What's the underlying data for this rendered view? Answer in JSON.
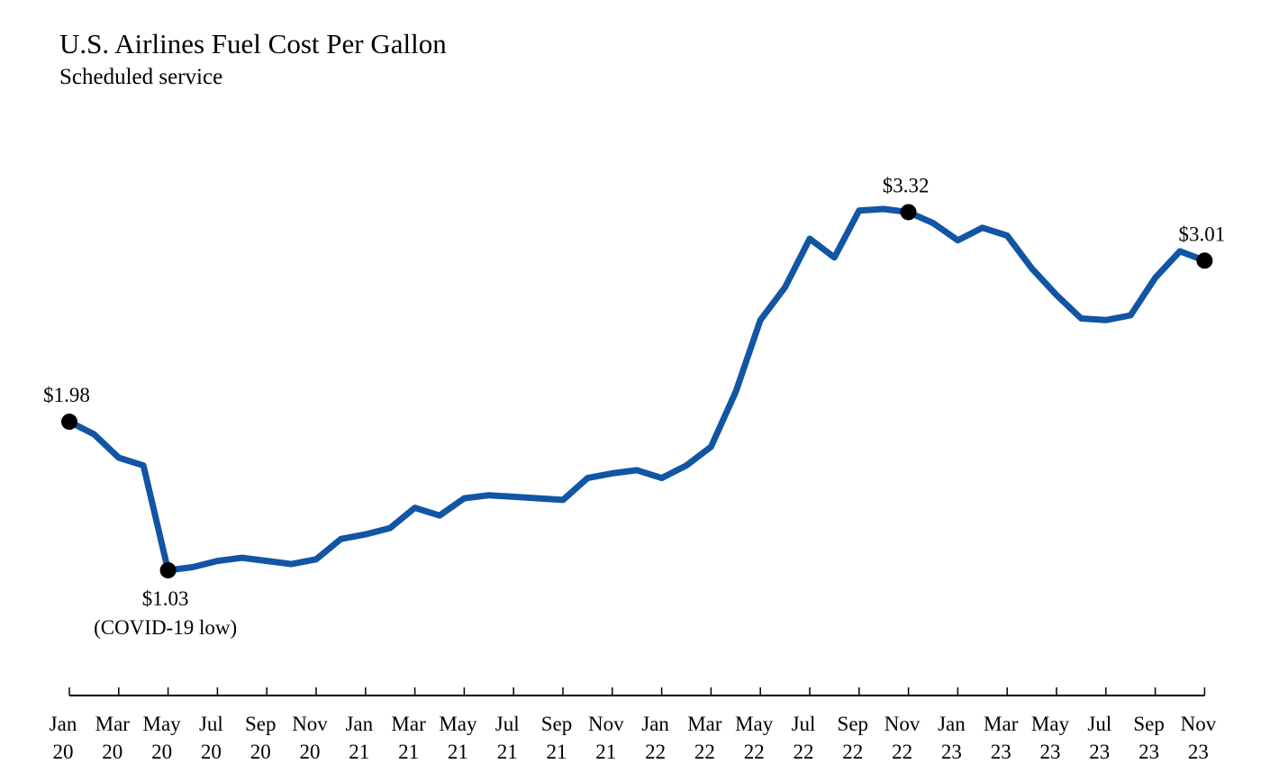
{
  "chart_data": {
    "type": "line",
    "title": "U.S. Airlines Fuel Cost Per Gallon",
    "subtitle": "Scheduled service",
    "xlabel": "",
    "ylabel": "",
    "ylim": [
      0.5,
      4.0
    ],
    "grid": false,
    "series_color": "#1155a4",
    "x": [
      "Jan 20",
      "Feb 20",
      "Mar 20",
      "Apr 20",
      "May 20",
      "Jun 20",
      "Jul 20",
      "Aug 20",
      "Sep 20",
      "Oct 20",
      "Nov 20",
      "Dec 20",
      "Jan 21",
      "Feb 21",
      "Mar 21",
      "Apr 21",
      "May 21",
      "Jun 21",
      "Jul 21",
      "Aug 21",
      "Sep 21",
      "Oct 21",
      "Nov 21",
      "Dec 21",
      "Jan 22",
      "Feb 22",
      "Mar 22",
      "Apr 22",
      "May 22",
      "Jun 22",
      "Jul 22",
      "Aug 22",
      "Sep 22",
      "Oct 22",
      "Nov 22",
      "Dec 22",
      "Jan 23",
      "Feb 23",
      "Mar 23",
      "Apr 23",
      "May 23",
      "Jun 23",
      "Jul 23",
      "Aug 23",
      "Sep 23",
      "Oct 23",
      "Nov 23"
    ],
    "series": [
      {
        "name": "Fuel cost per gallon",
        "values": [
          1.98,
          1.9,
          1.75,
          1.7,
          1.03,
          1.05,
          1.09,
          1.11,
          1.09,
          1.07,
          1.1,
          1.23,
          1.26,
          1.3,
          1.43,
          1.38,
          1.49,
          1.51,
          1.5,
          1.49,
          1.48,
          1.62,
          1.65,
          1.67,
          1.62,
          1.7,
          1.82,
          2.17,
          2.63,
          2.84,
          3.15,
          3.03,
          3.33,
          3.34,
          3.32,
          3.25,
          3.14,
          3.22,
          3.17,
          2.96,
          2.79,
          2.64,
          2.63,
          2.66,
          2.9,
          3.07,
          3.01
        ]
      }
    ],
    "markers": [
      {
        "index": 0,
        "label": "$1.98",
        "position": "above"
      },
      {
        "index": 4,
        "label": "$1.03",
        "note": "(COVID-19 low)",
        "position": "below"
      },
      {
        "index": 34,
        "label": "$3.32",
        "position": "above"
      },
      {
        "index": 46,
        "label": "$3.01",
        "position": "above"
      }
    ],
    "tick_labels": [
      {
        "index": 0,
        "month": "Jan",
        "year": "20"
      },
      {
        "index": 2,
        "month": "Mar",
        "year": "20"
      },
      {
        "index": 4,
        "month": "May",
        "year": "20"
      },
      {
        "index": 6,
        "month": "Jul",
        "year": "20"
      },
      {
        "index": 8,
        "month": "Sep",
        "year": "20"
      },
      {
        "index": 10,
        "month": "Nov",
        "year": "20"
      },
      {
        "index": 12,
        "month": "Jan",
        "year": "21"
      },
      {
        "index": 14,
        "month": "Mar",
        "year": "21"
      },
      {
        "index": 16,
        "month": "May",
        "year": "21"
      },
      {
        "index": 18,
        "month": "Jul",
        "year": "21"
      },
      {
        "index": 20,
        "month": "Sep",
        "year": "21"
      },
      {
        "index": 22,
        "month": "Nov",
        "year": "21"
      },
      {
        "index": 24,
        "month": "Jan",
        "year": "22"
      },
      {
        "index": 26,
        "month": "Mar",
        "year": "22"
      },
      {
        "index": 28,
        "month": "May",
        "year": "22"
      },
      {
        "index": 30,
        "month": "Jul",
        "year": "22"
      },
      {
        "index": 32,
        "month": "Sep",
        "year": "22"
      },
      {
        "index": 34,
        "month": "Nov",
        "year": "22"
      },
      {
        "index": 36,
        "month": "Jan",
        "year": "23"
      },
      {
        "index": 38,
        "month": "Mar",
        "year": "23"
      },
      {
        "index": 40,
        "month": "May",
        "year": "23"
      },
      {
        "index": 42,
        "month": "Jul",
        "year": "23"
      },
      {
        "index": 44,
        "month": "Sep",
        "year": "23"
      },
      {
        "index": 46,
        "month": "Nov",
        "year": "23"
      }
    ]
  }
}
